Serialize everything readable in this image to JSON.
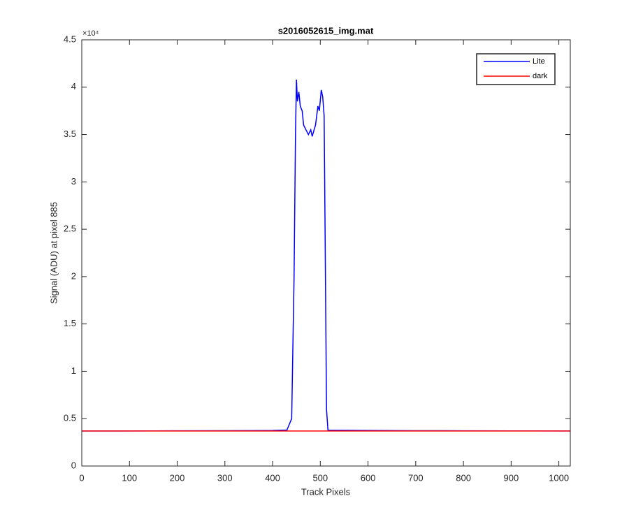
{
  "chart_data": {
    "type": "line",
    "title": "s2016052615_img.mat",
    "x_label": "Track Pixels",
    "y_label": "Signal (ADU) at pixel 885",
    "y_multiplier": "×10⁴",
    "x": [
      0,
      100,
      200,
      300,
      400,
      430,
      440,
      445,
      448,
      450,
      452,
      455,
      458,
      462,
      465,
      470,
      475,
      480,
      483,
      487,
      490,
      495,
      498,
      502,
      505,
      508,
      510,
      513,
      516,
      520,
      600,
      700,
      800,
      900,
      1024
    ],
    "series": [
      {
        "name": "Lite",
        "color": "#0000ff",
        "values": [
          0.37,
          0.37,
          0.372,
          0.373,
          0.375,
          0.38,
          0.5,
          2.0,
          3.5,
          4.08,
          3.85,
          3.95,
          3.8,
          3.75,
          3.6,
          3.55,
          3.5,
          3.55,
          3.48,
          3.55,
          3.6,
          3.8,
          3.75,
          3.97,
          3.9,
          3.7,
          2.5,
          0.6,
          0.38,
          0.378,
          0.375,
          0.373,
          0.372,
          0.371,
          0.37
        ]
      },
      {
        "name": "dark",
        "color": "#ff0000",
        "values": [
          0.37,
          0.37,
          0.37,
          0.37,
          0.37,
          0.37,
          0.37,
          0.37,
          0.37,
          0.37,
          0.37,
          0.37,
          0.37,
          0.37,
          0.37,
          0.37,
          0.37,
          0.37,
          0.37,
          0.37,
          0.37,
          0.37,
          0.37,
          0.37,
          0.37,
          0.37,
          0.37,
          0.37,
          0.37,
          0.37,
          0.37,
          0.37,
          0.37,
          0.37,
          0.37
        ]
      }
    ],
    "xlim": [
      0,
      1024
    ],
    "ylim": [
      0,
      4.5
    ],
    "xticks": [
      0,
      100,
      200,
      300,
      400,
      500,
      600,
      700,
      800,
      900,
      1000
    ],
    "yticks": [
      0,
      0.5,
      1,
      1.5,
      2,
      2.5,
      3,
      3.5,
      4,
      4.5
    ],
    "legend": "top-right"
  }
}
